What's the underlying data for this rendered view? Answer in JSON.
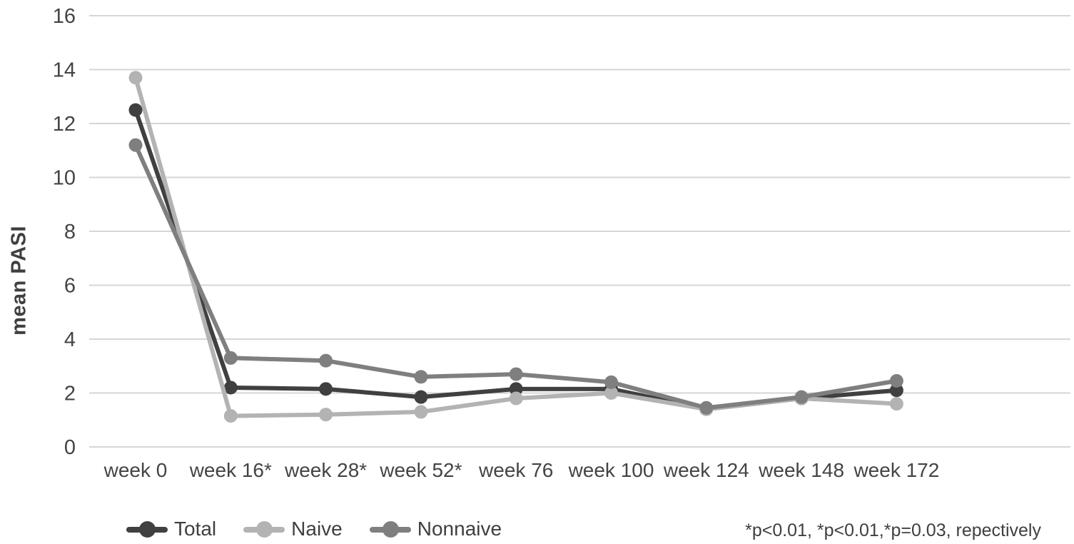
{
  "chart_data": {
    "type": "line",
    "title": "",
    "ylabel": "mean PASI",
    "xlabel": "",
    "ylim": [
      0,
      16
    ],
    "ytick_step": 2,
    "grid": "horizontal",
    "legend_position": "bottom",
    "categories": [
      "week 0",
      "week 16*",
      "week 28*",
      "week 52*",
      "week 76",
      "week 100",
      "week 124",
      "week 148",
      "week 172"
    ],
    "series": [
      {
        "name": "Total",
        "color": "#404040",
        "values": [
          12.5,
          2.2,
          2.15,
          1.85,
          2.15,
          2.15,
          1.4,
          1.8,
          2.1
        ]
      },
      {
        "name": "Naive",
        "color": "#b3b3b3",
        "values": [
          13.7,
          1.15,
          1.2,
          1.3,
          1.8,
          2.0,
          1.4,
          1.8,
          1.6
        ]
      },
      {
        "name": "Nonnaive",
        "color": "#7f7f7f",
        "values": [
          11.2,
          3.3,
          3.2,
          2.6,
          2.7,
          2.4,
          1.45,
          1.85,
          2.45
        ]
      }
    ],
    "annotation": "*p<0.01, *p<0.01,*p=0.03, repectively",
    "colors": {
      "grid": "#d6d6d6",
      "axis_text": "#444444",
      "ylabel_text": "#3f3f3f",
      "legend_text": "#3f3f3f",
      "annotation_text": "#3f3f3f",
      "background": "#ffffff"
    }
  }
}
